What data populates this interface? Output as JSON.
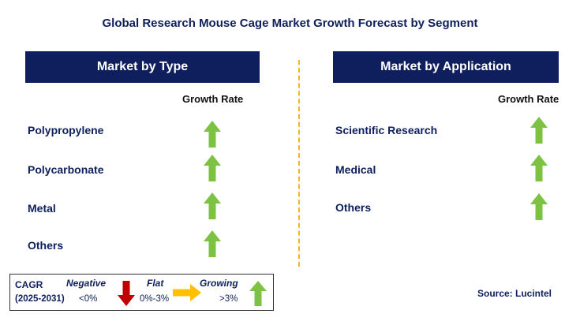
{
  "title": "Global Research Mouse Cage Market Growth Forecast by Segment",
  "left_panel": {
    "header": "Market by Type",
    "growth_rate_label": "Growth Rate",
    "rows": [
      {
        "label": "Polypropylene",
        "growth": "growing"
      },
      {
        "label": "Polycarbonate",
        "growth": "growing"
      },
      {
        "label": "Metal",
        "growth": "growing"
      },
      {
        "label": "Others",
        "growth": "growing"
      }
    ]
  },
  "right_panel": {
    "header": "Market by Application",
    "growth_rate_label": "Growth Rate",
    "rows": [
      {
        "label": "Scientific Research",
        "growth": "growing"
      },
      {
        "label": "Medical",
        "growth": "growing"
      },
      {
        "label": "Others",
        "growth": "growing"
      }
    ]
  },
  "legend": {
    "cagr_label": "CAGR",
    "period": "(2025-2031)",
    "negative_label": "Negative",
    "negative_range": "<0%",
    "flat_label": "Flat",
    "flat_range": "0%-3%",
    "growing_label": "Growing",
    "growing_range": ">3%"
  },
  "source": "Source: Lucintel",
  "colors": {
    "header_bg": "#0f1f5e",
    "growing_arrow": "#7dc242",
    "negative_arrow": "#c00000",
    "flat_arrow": "#ffc000",
    "divider": "#f2b51c"
  }
}
